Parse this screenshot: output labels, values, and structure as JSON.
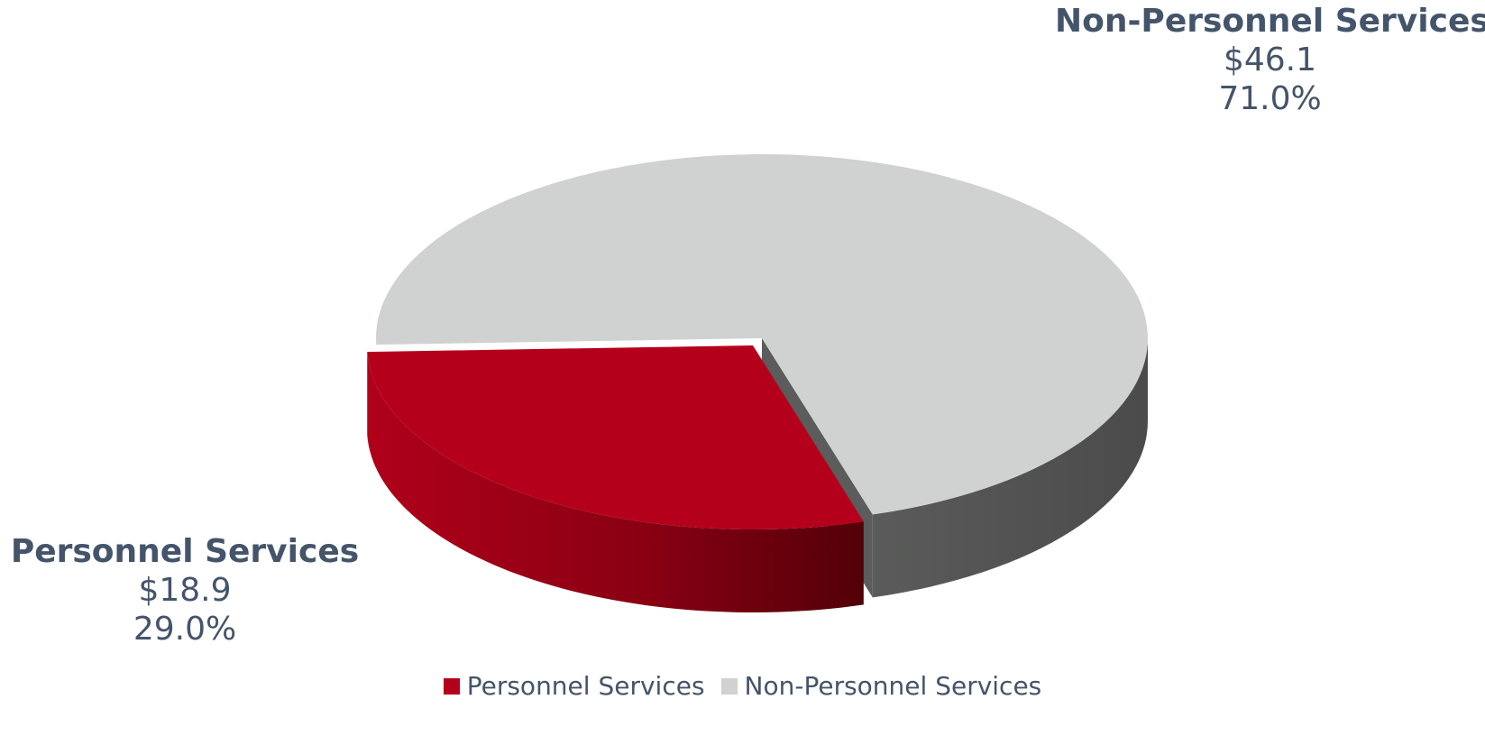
{
  "chart_data": {
    "type": "pie",
    "categories": [
      "Personnel Services",
      "Non-Personnel Services"
    ],
    "values": [
      18.9,
      46.1
    ],
    "percentages": [
      "29.0%",
      "71.0%"
    ],
    "value_labels": [
      "$18.9",
      "$46.1"
    ],
    "colors": [
      "#b5001b",
      "#d0d1d1"
    ],
    "legend_placement": "bottom",
    "style": "3d-exploded"
  },
  "labels": {
    "personnel": {
      "category": "Personnel Services",
      "value": "$18.9",
      "percent": "29.0%"
    },
    "non_personnel": {
      "category": "Non-Personnel Services",
      "value": "$46.1",
      "percent": "71.0%"
    }
  },
  "legend": [
    {
      "label": "Personnel Services",
      "color": "#b5001b"
    },
    {
      "label": "Non-Personnel Services",
      "color": "#d0d1d1"
    }
  ]
}
